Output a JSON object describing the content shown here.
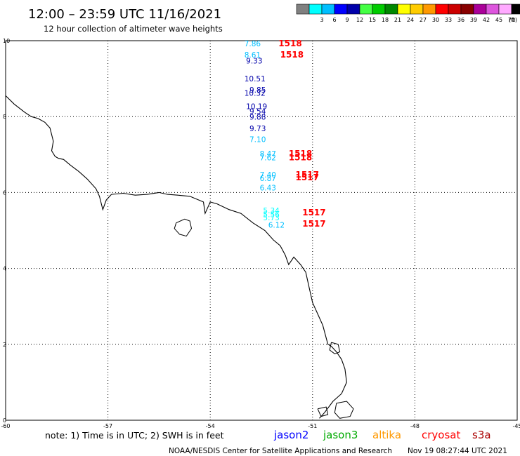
{
  "header": {
    "title": "12:00 – 23:59 UTC 11/16/2021",
    "subtitle": "12 hour collection of altimeter wave heights"
  },
  "legend": {
    "unit_label": "(ft)",
    "bins": [
      {
        "label": "",
        "color": "#808080"
      },
      {
        "label": "3",
        "color": "#00ffff"
      },
      {
        "label": "6",
        "color": "#00bfff"
      },
      {
        "label": "9",
        "color": "#0000ff"
      },
      {
        "label": "12",
        "color": "#0000aa"
      },
      {
        "label": "15",
        "color": "#44ff44"
      },
      {
        "label": "18",
        "color": "#00cc00"
      },
      {
        "label": "21",
        "color": "#008800"
      },
      {
        "label": "24",
        "color": "#ffff00"
      },
      {
        "label": "27",
        "color": "#ffcc00"
      },
      {
        "label": "30",
        "color": "#ff9900"
      },
      {
        "label": "33",
        "color": "#ff0000"
      },
      {
        "label": "36",
        "color": "#cc0000"
      },
      {
        "label": "39",
        "color": "#880000"
      },
      {
        "label": "42",
        "color": "#aa0099"
      },
      {
        "label": "45",
        "color": "#dd55dd"
      },
      {
        "label": "70",
        "color": "#ffaaff"
      },
      {
        "label": "",
        "color": "#000000"
      }
    ]
  },
  "axes": {
    "lon_min": -60,
    "lon_max": -45,
    "lat_min": 0,
    "lat_max": 10,
    "x_ticks": [
      "-60",
      "-57",
      "-54",
      "-51",
      "-48",
      "-45"
    ],
    "y_ticks": [
      "0",
      "2",
      "4",
      "6",
      "8",
      "10"
    ],
    "grid": "dotted"
  },
  "observations": [
    {
      "value": "7.86",
      "lon": -53.0,
      "lat": 9.85,
      "color": "#00bfff"
    },
    {
      "value": "8.61",
      "lon": -53.0,
      "lat": 9.56,
      "color": "#00bfff"
    },
    {
      "value": "9.33",
      "lon": -52.95,
      "lat": 9.4,
      "color": "#0000aa"
    },
    {
      "value": "10.51",
      "lon": -53.0,
      "lat": 8.93,
      "color": "#0000aa"
    },
    {
      "value": "9.85",
      "lon": -52.85,
      "lat": 8.63,
      "color": "#0000aa"
    },
    {
      "value": "10.32",
      "lon": -53.0,
      "lat": 8.55,
      "color": "#0000aa"
    },
    {
      "value": "10.19",
      "lon": -52.95,
      "lat": 8.2,
      "color": "#0000aa"
    },
    {
      "value": "9.54",
      "lon": -52.85,
      "lat": 8.07,
      "color": "#0000aa"
    },
    {
      "value": "9.88",
      "lon": -52.85,
      "lat": 7.92,
      "color": "#0000aa"
    },
    {
      "value": "9.73",
      "lon": -52.85,
      "lat": 7.62,
      "color": "#0000aa"
    },
    {
      "value": "7.10",
      "lon": -52.85,
      "lat": 7.33,
      "color": "#00bfff"
    },
    {
      "value": "8.47",
      "lon": -52.55,
      "lat": 6.95,
      "color": "#00bfff"
    },
    {
      "value": "7.62",
      "lon": -52.55,
      "lat": 6.85,
      "color": "#00bfff"
    },
    {
      "value": "7.40",
      "lon": -52.55,
      "lat": 6.4,
      "color": "#00bfff"
    },
    {
      "value": "6.87",
      "lon": -52.55,
      "lat": 6.3,
      "color": "#00bfff"
    },
    {
      "value": "6.43",
      "lon": -52.55,
      "lat": 6.05,
      "color": "#00bfff"
    },
    {
      "value": "5.34",
      "lon": -52.45,
      "lat": 5.45,
      "color": "#00ffff"
    },
    {
      "value": "5.56",
      "lon": -52.45,
      "lat": 5.35,
      "color": "#00ffff"
    },
    {
      "value": "5.73",
      "lon": -52.45,
      "lat": 5.27,
      "color": "#00ffff"
    },
    {
      "value": "6.12",
      "lon": -52.3,
      "lat": 5.07,
      "color": "#00bfff"
    }
  ],
  "time_labels": [
    {
      "text": "1518",
      "lon": -52.0,
      "lat": 9.85,
      "color": "#ff0000"
    },
    {
      "text": "1518",
      "lon": -51.95,
      "lat": 9.56,
      "color": "#ff0000"
    },
    {
      "text": "1518",
      "lon": -51.7,
      "lat": 6.95,
      "color": "#ff0000"
    },
    {
      "text": "1518",
      "lon": -51.7,
      "lat": 6.85,
      "color": "#ff0000"
    },
    {
      "text": "1517",
      "lon": -51.5,
      "lat": 6.4,
      "color": "#ff0000"
    },
    {
      "text": "1517",
      "lon": -51.5,
      "lat": 6.32,
      "color": "#ff0000"
    },
    {
      "text": "1517",
      "lon": -51.3,
      "lat": 5.4,
      "color": "#ff0000"
    },
    {
      "text": "1517",
      "lon": -51.3,
      "lat": 5.1,
      "color": "#ff0000"
    }
  ],
  "coastline": [
    [
      -60.0,
      8.55
    ],
    [
      -59.75,
      8.33
    ],
    [
      -59.45,
      8.12
    ],
    [
      -59.25,
      8.0
    ],
    [
      -59.05,
      7.95
    ],
    [
      -58.85,
      7.85
    ],
    [
      -58.7,
      7.7
    ],
    [
      -58.6,
      7.35
    ],
    [
      -58.65,
      7.1
    ],
    [
      -58.55,
      6.95
    ],
    [
      -58.45,
      6.9
    ],
    [
      -58.3,
      6.87
    ],
    [
      -58.1,
      6.72
    ],
    [
      -57.85,
      6.55
    ],
    [
      -57.6,
      6.35
    ],
    [
      -57.35,
      6.1
    ],
    [
      -57.25,
      5.9
    ],
    [
      -57.15,
      5.55
    ],
    [
      -57.05,
      5.8
    ],
    [
      -56.9,
      5.95
    ],
    [
      -56.55,
      5.98
    ],
    [
      -56.2,
      5.93
    ],
    [
      -55.85,
      5.95
    ],
    [
      -55.5,
      6.0
    ],
    [
      -55.25,
      5.95
    ],
    [
      -54.95,
      5.93
    ],
    [
      -54.6,
      5.9
    ],
    [
      -54.2,
      5.75
    ],
    [
      -54.15,
      5.45
    ],
    [
      -54.0,
      5.75
    ],
    [
      -53.8,
      5.7
    ],
    [
      -53.45,
      5.55
    ],
    [
      -53.1,
      5.45
    ],
    [
      -52.75,
      5.2
    ],
    [
      -52.4,
      5.0
    ],
    [
      -52.15,
      4.75
    ],
    [
      -51.95,
      4.6
    ],
    [
      -51.8,
      4.35
    ],
    [
      -51.7,
      4.1
    ],
    [
      -51.55,
      4.3
    ],
    [
      -51.35,
      4.1
    ],
    [
      -51.2,
      3.9
    ],
    [
      -51.1,
      3.5
    ],
    [
      -51.0,
      3.1
    ],
    [
      -50.85,
      2.8
    ],
    [
      -50.7,
      2.5
    ],
    [
      -50.55,
      2.0
    ],
    [
      -50.45,
      1.95
    ],
    [
      -50.3,
      1.8
    ],
    [
      -50.15,
      1.6
    ],
    [
      -50.05,
      1.35
    ],
    [
      -50.0,
      1.0
    ],
    [
      -50.15,
      0.7
    ],
    [
      -50.4,
      0.5
    ],
    [
      -50.65,
      0.2
    ],
    [
      -50.8,
      0.05
    ]
  ],
  "islands": [
    [
      [
        -55.0,
        5.2
      ],
      [
        -54.75,
        5.3
      ],
      [
        -54.6,
        5.25
      ],
      [
        -54.55,
        5.05
      ],
      [
        -54.7,
        4.85
      ],
      [
        -54.9,
        4.9
      ],
      [
        -55.05,
        5.05
      ],
      [
        -55.0,
        5.2
      ]
    ],
    [
      [
        -50.45,
        2.05
      ],
      [
        -50.25,
        2.0
      ],
      [
        -50.2,
        1.8
      ],
      [
        -50.35,
        1.75
      ],
      [
        -50.5,
        1.85
      ],
      [
        -50.45,
        2.05
      ]
    ],
    [
      [
        -50.3,
        0.45
      ],
      [
        -50.0,
        0.5
      ],
      [
        -49.8,
        0.3
      ],
      [
        -49.9,
        0.1
      ],
      [
        -50.2,
        0.05
      ],
      [
        -50.35,
        0.2
      ],
      [
        -50.3,
        0.45
      ]
    ],
    [
      [
        -50.85,
        0.3
      ],
      [
        -50.6,
        0.35
      ],
      [
        -50.55,
        0.15
      ],
      [
        -50.75,
        0.1
      ],
      [
        -50.85,
        0.3
      ]
    ]
  ],
  "footer": {
    "note": "note:  1) Time is in UTC;  2) SWH is in feet",
    "satellites": [
      {
        "name": "jason2",
        "color": "#0000ff"
      },
      {
        "name": "jason3",
        "color": "#00aa00"
      },
      {
        "name": "altika",
        "color": "#ff9900"
      },
      {
        "name": "cryosat",
        "color": "#ff0000"
      },
      {
        "name": "s3a",
        "color": "#aa0000"
      }
    ],
    "credit": "NOAA/NESDIS Center for Satellite Applications and Research",
    "timestamp": "Nov 19 08:27:44 UTC 2021"
  }
}
